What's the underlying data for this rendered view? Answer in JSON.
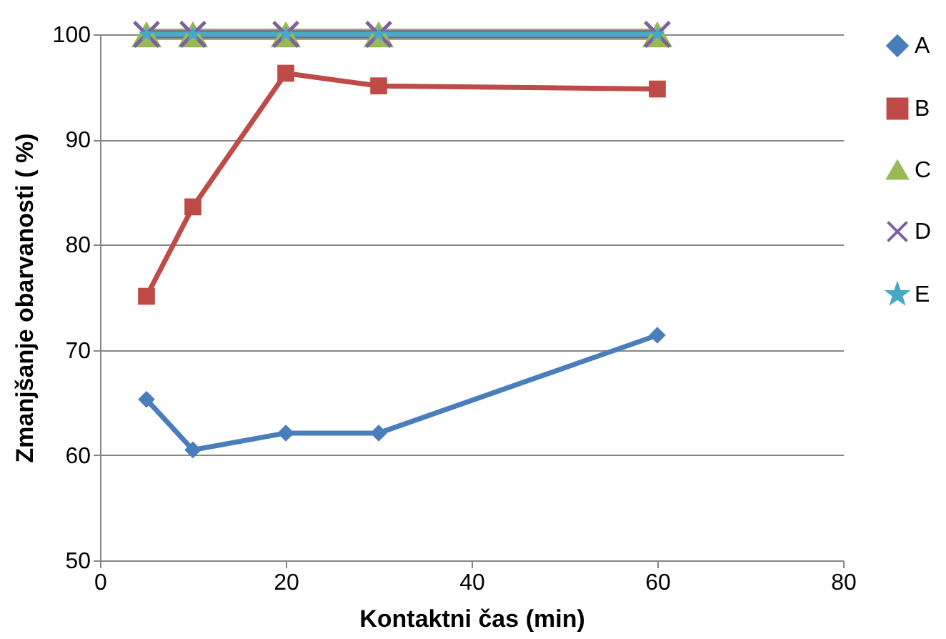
{
  "chart_data": {
    "type": "line",
    "xlabel": "Kontaktni čas (min)",
    "ylabel": "Zmanjšanje obarvanosti ( %)",
    "x": [
      5,
      10,
      20,
      30,
      60
    ],
    "series": [
      {
        "name": "A",
        "color": "#4a7ebb",
        "marker": "diamond",
        "values": [
          65.3,
          60.5,
          62.1,
          62.1,
          71.4
        ]
      },
      {
        "name": "B",
        "color": "#be4b48",
        "marker": "square",
        "values": [
          75.1,
          83.6,
          96.3,
          95.1,
          94.8
        ]
      },
      {
        "name": "C",
        "color": "#98b954",
        "marker": "triangle",
        "values": [
          100,
          100,
          100,
          100,
          100
        ]
      },
      {
        "name": "D",
        "color": "#7d60a0",
        "marker": "cross",
        "values": [
          100,
          100,
          100,
          100,
          100
        ]
      },
      {
        "name": "E",
        "color": "#46aac5",
        "marker": "star",
        "values": [
          100,
          100,
          100,
          100,
          100
        ]
      }
    ],
    "xlim": [
      0,
      80
    ],
    "xticks": [
      0,
      20,
      40,
      60,
      80
    ],
    "ylim": [
      50,
      100
    ],
    "yticks": [
      50,
      60,
      70,
      80,
      90,
      100
    ],
    "grid": "y",
    "legend": "right",
    "line_style": "solid"
  }
}
